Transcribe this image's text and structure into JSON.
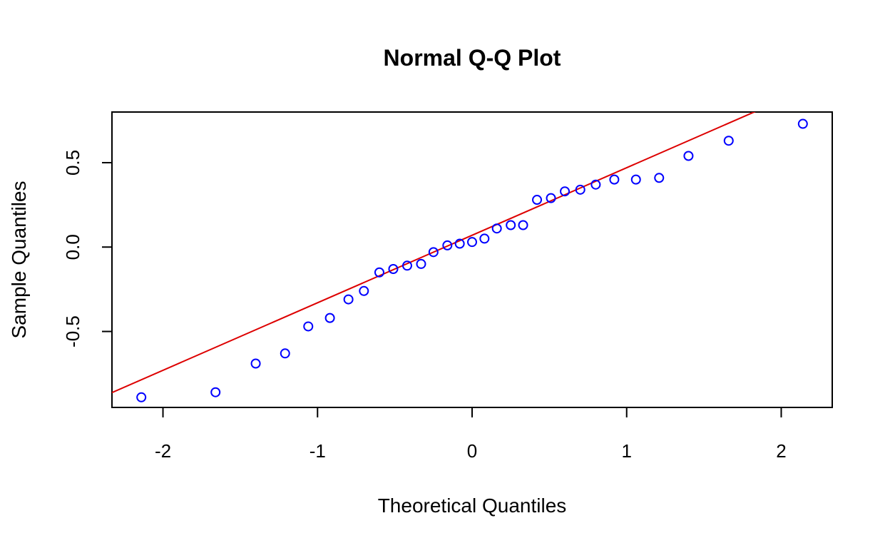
{
  "chart_data": {
    "type": "scatter",
    "title": "Normal Q-Q Plot",
    "xlabel": "Theoretical Quantiles",
    "ylabel": "Sample Quantiles",
    "xlim": [
      -2.33,
      2.33
    ],
    "ylim": [
      -0.95,
      0.8
    ],
    "x_ticks": [
      -2,
      -1,
      0,
      1,
      2
    ],
    "x_tick_labels": [
      "-2",
      "-1",
      "0",
      "1",
      "2"
    ],
    "y_ticks": [
      -0.5,
      0.0,
      0.5
    ],
    "y_tick_labels": [
      "-0.5",
      "0.0",
      "0.5"
    ],
    "grid": false,
    "colors": {
      "points": "#0000ff",
      "line": "#dd0000",
      "axes": "#000000"
    },
    "series": [
      {
        "points": [
          [
            -2.14,
            -0.89
          ],
          [
            -1.66,
            -0.86
          ],
          [
            -1.4,
            -0.69
          ],
          [
            -1.21,
            -0.63
          ],
          [
            -1.06,
            -0.47
          ],
          [
            -0.92,
            -0.42
          ],
          [
            -0.8,
            -0.31
          ],
          [
            -0.7,
            -0.26
          ],
          [
            -0.6,
            -0.15
          ],
          [
            -0.51,
            -0.13
          ],
          [
            -0.42,
            -0.11
          ],
          [
            -0.33,
            -0.1
          ],
          [
            -0.25,
            -0.03
          ],
          [
            -0.16,
            0.01
          ],
          [
            -0.08,
            0.02
          ],
          [
            0.0,
            0.03
          ],
          [
            0.08,
            0.05
          ],
          [
            0.16,
            0.11
          ],
          [
            0.25,
            0.13
          ],
          [
            0.33,
            0.13
          ],
          [
            0.42,
            0.28
          ],
          [
            0.51,
            0.29
          ],
          [
            0.6,
            0.33
          ],
          [
            0.7,
            0.34
          ],
          [
            0.8,
            0.37
          ],
          [
            0.92,
            0.4
          ],
          [
            1.06,
            0.4
          ],
          [
            1.21,
            0.41
          ],
          [
            1.4,
            0.54
          ],
          [
            1.66,
            0.63
          ],
          [
            2.14,
            0.73
          ]
        ]
      }
    ],
    "reference_line": {
      "intercept": 0.07,
      "slope": 0.4
    }
  }
}
